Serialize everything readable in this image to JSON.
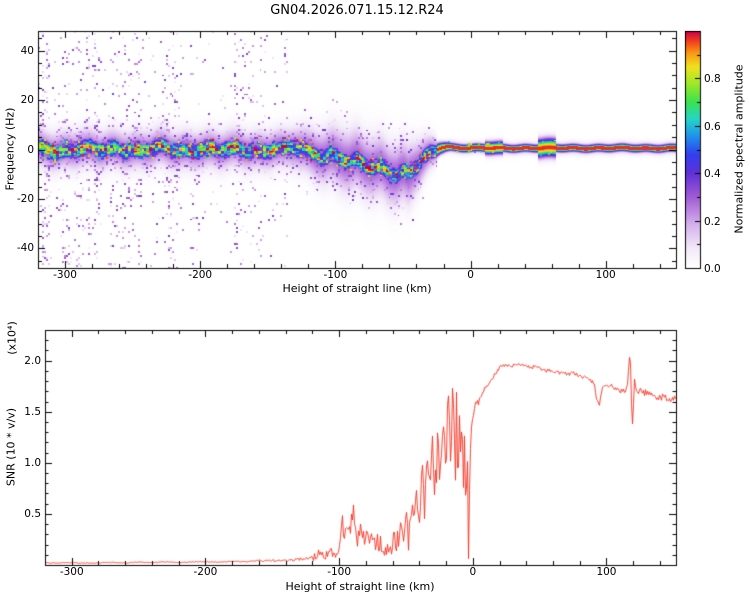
{
  "header": {
    "title": "GN04.2026.071.15.12.R24"
  },
  "chart_data": [
    {
      "type": "heatmap",
      "title": "GN04.2026.071.15.12.R24",
      "xlabel": "Height of straight line (km)",
      "ylabel": "Frequency (Hz)",
      "xlim": [
        -320,
        152
      ],
      "ylim": [
        -48,
        48
      ],
      "xtick_values": [
        -300,
        -200,
        -100,
        0,
        100
      ],
      "xtick_labels": [
        "-300",
        "-200",
        "-100",
        "0",
        "100"
      ],
      "ytick_values": [
        -40,
        -20,
        0,
        20,
        40
      ],
      "ytick_labels": [
        "-40",
        "-20",
        "0",
        "20",
        "40"
      ],
      "colorbar": {
        "label": "Normalized spectral amplitude",
        "range": [
          0,
          1
        ],
        "tick_values": [
          0,
          0.2,
          0.4,
          0.6,
          0.8
        ],
        "tick_labels": [
          "0.0",
          "0.2",
          "0.4",
          "0.6",
          "0.8"
        ]
      },
      "colormap_stops": [
        [
          0.0,
          255,
          255,
          255
        ],
        [
          0.08,
          242,
          233,
          248
        ],
        [
          0.18,
          214,
          178,
          236
        ],
        [
          0.3,
          160,
          90,
          212
        ],
        [
          0.4,
          96,
          48,
          216
        ],
        [
          0.48,
          48,
          64,
          238
        ],
        [
          0.56,
          32,
          150,
          235
        ],
        [
          0.63,
          36,
          214,
          198
        ],
        [
          0.7,
          60,
          225,
          80
        ],
        [
          0.78,
          160,
          232,
          40
        ],
        [
          0.85,
          240,
          225,
          30
        ],
        [
          0.91,
          250,
          150,
          20
        ],
        [
          0.96,
          242,
          60,
          30
        ],
        [
          1.0,
          205,
          0,
          70
        ]
      ],
      "band_center_keypoints": [
        [
          -320,
          0.3
        ],
        [
          -305,
          -0.4
        ],
        [
          -290,
          0.5
        ],
        [
          -275,
          -0.5
        ],
        [
          -260,
          0.4
        ],
        [
          -245,
          -0.3
        ],
        [
          -230,
          0.5
        ],
        [
          -215,
          -0.4
        ],
        [
          -200,
          0.4
        ],
        [
          -185,
          -0.5
        ],
        [
          -170,
          0.3
        ],
        [
          -155,
          -0.4
        ],
        [
          -145,
          0.6
        ],
        [
          -138,
          -0.3
        ],
        [
          -130,
          0.8
        ],
        [
          -122,
          -0.6
        ],
        [
          -115,
          -1.5
        ],
        [
          -108,
          -2.5
        ],
        [
          -102,
          -1.8
        ],
        [
          -96,
          -3.5
        ],
        [
          -90,
          -5.5
        ],
        [
          -84,
          -4.5
        ],
        [
          -78,
          -6.5
        ],
        [
          -72,
          -7.5
        ],
        [
          -66,
          -6.8
        ],
        [
          -60,
          -9
        ],
        [
          -55,
          -10
        ],
        [
          -50,
          -9
        ],
        [
          -46,
          -10.5
        ],
        [
          -42,
          -8
        ],
        [
          -38,
          -6
        ],
        [
          -34,
          -4
        ],
        [
          -30,
          -2
        ],
        [
          -26,
          -0.5
        ],
        [
          -22,
          0.8
        ],
        [
          -18,
          1.2
        ],
        [
          -10,
          0.8
        ],
        [
          0,
          0.6
        ],
        [
          20,
          0.5
        ],
        [
          40,
          0.6
        ],
        [
          60,
          0.5
        ],
        [
          80,
          0.6
        ],
        [
          100,
          0.5
        ],
        [
          120,
          0.6
        ],
        [
          150,
          0.5
        ]
      ],
      "render_params": {
        "core_sigma_wide": 2.3,
        "core_sigma_narrow": 1.0,
        "cloud_sigma_left": 5,
        "cloud_sigma_dip": 8,
        "cloud_sigma_right": 1.6,
        "background_x_max": -135,
        "core_amp": 0.97,
        "glow_amp": 0.3,
        "bright_dot_prob": 0.1
      }
    },
    {
      "type": "line",
      "xlabel": "Height of straight line (km)",
      "ylabel": "SNR (10 * v/v)",
      "scale_note": "(x10⁴)",
      "line_color": "#f5301f",
      "xlim": [
        -320,
        152
      ],
      "ylim": [
        0,
        2.3
      ],
      "xtick_values": [
        -300,
        -200,
        -100,
        0,
        100
      ],
      "xtick_labels": [
        "-300",
        "-200",
        "-100",
        "0",
        "100"
      ],
      "ytick_values": [
        0.5,
        1.0,
        1.5,
        2.0
      ],
      "ytick_labels": [
        "0.5",
        "1.0",
        "1.5",
        "2.0"
      ],
      "keypoints": [
        [
          -320,
          0.02
        ],
        [
          -300,
          0.022
        ],
        [
          -285,
          0.018
        ],
        [
          -270,
          0.025
        ],
        [
          -260,
          0.02
        ],
        [
          -250,
          0.028
        ],
        [
          -240,
          0.022
        ],
        [
          -230,
          0.03
        ],
        [
          -220,
          0.024
        ],
        [
          -210,
          0.03
        ],
        [
          -200,
          0.034
        ],
        [
          -190,
          0.028
        ],
        [
          -180,
          0.038
        ],
        [
          -170,
          0.032
        ],
        [
          -160,
          0.045
        ],
        [
          -152,
          0.038
        ],
        [
          -145,
          0.05
        ],
        [
          -138,
          0.042
        ],
        [
          -132,
          0.055
        ],
        [
          -126,
          0.06
        ],
        [
          -120,
          0.08
        ],
        [
          -115,
          0.11
        ],
        [
          -111,
          0.09
        ],
        [
          -107,
          0.14
        ],
        [
          -103,
          0.11
        ],
        [
          -100,
          0.18
        ],
        [
          -98,
          0.32
        ],
        [
          -96,
          0.22
        ],
        [
          -94,
          0.42
        ],
        [
          -92,
          0.28
        ],
        [
          -90,
          0.5
        ],
        [
          -88,
          0.33
        ],
        [
          -86,
          0.26
        ],
        [
          -84,
          0.38
        ],
        [
          -82,
          0.24
        ],
        [
          -80,
          0.32
        ],
        [
          -78,
          0.2
        ],
        [
          -76,
          0.28
        ],
        [
          -74,
          0.18
        ],
        [
          -72,
          0.24
        ],
        [
          -70,
          0.17
        ],
        [
          -68,
          0.22
        ],
        [
          -66,
          0.15
        ],
        [
          -64,
          0.2
        ],
        [
          -62,
          0.14
        ],
        [
          -60,
          0.19
        ],
        [
          -58,
          0.26
        ],
        [
          -56,
          0.18
        ],
        [
          -54,
          0.3
        ],
        [
          -52,
          0.22
        ],
        [
          -50,
          0.42
        ],
        [
          -48,
          0.28
        ],
        [
          -46,
          0.55
        ],
        [
          -44,
          0.35
        ],
        [
          -42,
          0.7
        ],
        [
          -40,
          0.45
        ],
        [
          -38,
          0.9
        ],
        [
          -36,
          0.55
        ],
        [
          -34,
          1.05
        ],
        [
          -32,
          0.65
        ],
        [
          -30,
          1.15
        ],
        [
          -28,
          0.75
        ],
        [
          -26,
          1.25
        ],
        [
          -24,
          0.85
        ],
        [
          -22,
          1.4
        ],
        [
          -20,
          0.95
        ],
        [
          -18,
          1.7
        ],
        [
          -16,
          0.9
        ],
        [
          -15,
          1.8
        ],
        [
          -14,
          1.5
        ],
        [
          -13,
          0.7
        ],
        [
          -12,
          1.6
        ],
        [
          -11,
          0.85
        ],
        [
          -10,
          1.45
        ],
        [
          -9,
          0.95
        ],
        [
          -8,
          1.5
        ],
        [
          -7,
          0.7
        ],
        [
          -6,
          1.35
        ],
        [
          -5,
          0.45
        ],
        [
          -4,
          1.2
        ],
        [
          -3,
          0.05
        ],
        [
          -2,
          1.05
        ],
        [
          -1,
          1.25
        ],
        [
          0,
          1.35
        ],
        [
          2,
          1.5
        ],
        [
          5,
          1.62
        ],
        [
          8,
          1.7
        ],
        [
          12,
          1.78
        ],
        [
          16,
          1.85
        ],
        [
          20,
          1.93
        ],
        [
          24,
          1.96
        ],
        [
          28,
          1.94
        ],
        [
          32,
          1.97
        ],
        [
          36,
          1.95
        ],
        [
          40,
          1.96
        ],
        [
          44,
          1.93
        ],
        [
          48,
          1.95
        ],
        [
          52,
          1.92
        ],
        [
          56,
          1.9
        ],
        [
          60,
          1.91
        ],
        [
          64,
          1.88
        ],
        [
          68,
          1.9
        ],
        [
          72,
          1.86
        ],
        [
          76,
          1.88
        ],
        [
          80,
          1.84
        ],
        [
          84,
          1.85
        ],
        [
          88,
          1.81
        ],
        [
          91,
          1.79
        ],
        [
          93,
          1.62
        ],
        [
          95,
          1.56
        ],
        [
          97,
          1.74
        ],
        [
          100,
          1.77
        ],
        [
          104,
          1.75
        ],
        [
          108,
          1.72
        ],
        [
          112,
          1.7
        ],
        [
          115,
          1.69
        ],
        [
          117,
          1.9
        ],
        [
          118,
          2.15
        ],
        [
          119,
          1.6
        ],
        [
          120,
          1.3
        ],
        [
          121,
          1.85
        ],
        [
          123,
          1.72
        ],
        [
          126,
          1.7
        ],
        [
          130,
          1.68
        ],
        [
          134,
          1.67
        ],
        [
          138,
          1.65
        ],
        [
          142,
          1.64
        ],
        [
          146,
          1.63
        ],
        [
          150,
          1.62
        ]
      ],
      "noise_profile": [
        [
          -320,
          -160,
          0.004
        ],
        [
          -160,
          -120,
          0.012
        ],
        [
          -120,
          -100,
          0.045
        ],
        [
          -100,
          -60,
          0.09
        ],
        [
          -60,
          -30,
          0.16
        ],
        [
          -30,
          -8,
          0.2
        ],
        [
          -8,
          5,
          0.09
        ],
        [
          5,
          60,
          0.018
        ],
        [
          60,
          110,
          0.022
        ],
        [
          110,
          152,
          0.035
        ]
      ]
    }
  ]
}
